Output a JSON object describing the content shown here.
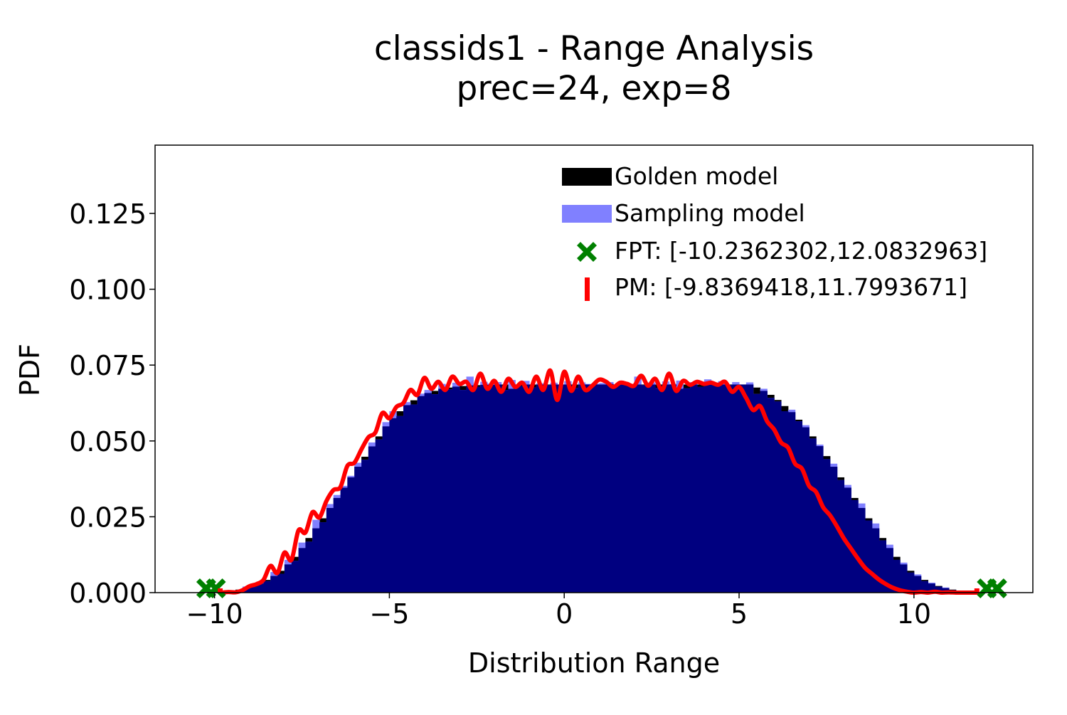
{
  "chart_data": {
    "type": "bar",
    "title": "classids1 - Range Analysis",
    "subtitle": "prec=24, exp=8",
    "xlabel": "Distribution Range",
    "ylabel": "PDF",
    "xlim": [
      -11.7,
      13.4
    ],
    "ylim": [
      0,
      0.1475
    ],
    "xticks": [
      -10,
      -5,
      0,
      5,
      10
    ],
    "xtick_labels": [
      "−10",
      "−5",
      "0",
      "5",
      "10"
    ],
    "yticks": [
      0,
      0.025,
      0.05,
      0.075,
      0.1,
      0.125
    ],
    "ytick_labels": [
      "0.000",
      "0.025",
      "0.050",
      "0.075",
      "0.100",
      "0.125"
    ],
    "grid": false,
    "legend_position": "top-right",
    "legend": [
      {
        "label": "Golden model",
        "marker": "bar",
        "color": "#000000"
      },
      {
        "label": "Sampling model",
        "marker": "bar",
        "color": "#8080ff"
      },
      {
        "label": "FPT: [-10.2362302,12.0832963]",
        "marker": "x",
        "color": "#008000"
      },
      {
        "label": "PM: [-9.8369418,11.7993671]",
        "marker": "vline",
        "color": "#ff0000"
      }
    ],
    "colors": {
      "golden": "#000000",
      "sampling": "#8080ff",
      "overlap": "#000080",
      "fpt": "#008000",
      "pm": "#ff0000"
    },
    "bin_width": 0.2,
    "series": [
      {
        "name": "Golden model",
        "bins_x_start": [
          -10.0,
          -9.8,
          -9.6,
          -9.4,
          -9.2,
          -9.0,
          -8.8,
          -8.6,
          -8.4,
          -8.2,
          -8.0,
          -7.8,
          -7.6,
          -7.4,
          -7.2,
          -7.0,
          -6.8,
          -6.6,
          -6.4,
          -6.2,
          -6.0,
          -5.8,
          -5.6,
          -5.4,
          -5.2,
          -5.0,
          -4.8,
          -4.6,
          -4.4,
          -4.2,
          -4.0,
          -3.8,
          -3.6,
          -3.4,
          -3.2,
          -3.0,
          -2.8,
          -2.6,
          -2.4,
          -2.2,
          -2.0,
          -1.8,
          -1.6,
          -1.4,
          -1.2,
          -1.0,
          -0.8,
          -0.6,
          -0.4,
          -0.2,
          0.0,
          0.2,
          0.4,
          0.6,
          0.8,
          1.0,
          1.2,
          1.4,
          1.6,
          1.8,
          2.0,
          2.2,
          2.4,
          2.6,
          2.8,
          3.0,
          3.2,
          3.4,
          3.6,
          3.8,
          4.0,
          4.2,
          4.4,
          4.6,
          4.8,
          5.0,
          5.2,
          5.4,
          5.6,
          5.8,
          6.0,
          6.2,
          6.4,
          6.6,
          6.8,
          7.0,
          7.2,
          7.4,
          7.6,
          7.8,
          8.0,
          8.2,
          8.4,
          8.6,
          8.8,
          9.0,
          9.2,
          9.4,
          9.6,
          9.8,
          10.0,
          10.2,
          10.4,
          10.6,
          10.8,
          11.0,
          11.2,
          11.4,
          11.6
        ],
        "values": [
          0.0002,
          0.0003,
          0.0006,
          0.001,
          0.0015,
          0.0022,
          0.003,
          0.0042,
          0.0055,
          0.0072,
          0.0093,
          0.0118,
          0.0147,
          0.018,
          0.0212,
          0.0245,
          0.0279,
          0.0312,
          0.0346,
          0.038,
          0.0415,
          0.0448,
          0.0482,
          0.0515,
          0.0548,
          0.0575,
          0.0598,
          0.0618,
          0.0634,
          0.0648,
          0.0658,
          0.0665,
          0.0672,
          0.0676,
          0.0679,
          0.0681,
          0.0683,
          0.0684,
          0.0685,
          0.0685,
          0.0686,
          0.0686,
          0.0672,
          0.0686,
          0.0686,
          0.0686,
          0.0686,
          0.0686,
          0.0686,
          0.0686,
          0.0686,
          0.0686,
          0.0686,
          0.0686,
          0.0686,
          0.0686,
          0.0688,
          0.0686,
          0.0686,
          0.0686,
          0.0686,
          0.0686,
          0.0686,
          0.0686,
          0.0686,
          0.0686,
          0.0672,
          0.0686,
          0.0686,
          0.0686,
          0.0686,
          0.0686,
          0.0686,
          0.0686,
          0.0686,
          0.0686,
          0.0686,
          0.0676,
          0.0665,
          0.0652,
          0.0635,
          0.0615,
          0.0595,
          0.057,
          0.0545,
          0.0515,
          0.0483,
          0.045,
          0.0415,
          0.038,
          0.0346,
          0.0312,
          0.0279,
          0.0245,
          0.0212,
          0.018,
          0.0147,
          0.0118,
          0.0093,
          0.0072,
          0.0055,
          0.0042,
          0.003,
          0.0022,
          0.0015,
          0.001,
          0.0006,
          0.0003,
          0.0002
        ]
      },
      {
        "name": "Sampling model",
        "bins_x_start": [
          -10.0,
          -9.8,
          -9.6,
          -9.4,
          -9.2,
          -9.0,
          -8.8,
          -8.6,
          -8.4,
          -8.2,
          -8.0,
          -7.8,
          -7.6,
          -7.4,
          -7.2,
          -7.0,
          -6.8,
          -6.6,
          -6.4,
          -6.2,
          -6.0,
          -5.8,
          -5.6,
          -5.4,
          -5.2,
          -5.0,
          -4.8,
          -4.6,
          -4.4,
          -4.2,
          -4.0,
          -3.8,
          -3.6,
          -3.4,
          -3.2,
          -3.0,
          -2.8,
          -2.6,
          -2.4,
          -2.2,
          -2.0,
          -1.8,
          -1.6,
          -1.4,
          -1.2,
          -1.0,
          -0.8,
          -0.6,
          -0.4,
          -0.2,
          0.0,
          0.2,
          0.4,
          0.6,
          0.8,
          1.0,
          1.2,
          1.4,
          1.6,
          1.8,
          2.0,
          2.2,
          2.4,
          2.6,
          2.8,
          3.0,
          3.2,
          3.4,
          3.6,
          3.8,
          4.0,
          4.2,
          4.4,
          4.6,
          4.8,
          5.0,
          5.2,
          5.4,
          5.6,
          5.8,
          6.0,
          6.2,
          6.4,
          6.6,
          6.8,
          7.0,
          7.2,
          7.4,
          7.6,
          7.8,
          8.0,
          8.2,
          8.4,
          8.6,
          8.8,
          9.0,
          9.2,
          9.4,
          9.6,
          9.8,
          10.0,
          10.2,
          10.4,
          10.6,
          10.8,
          11.0,
          11.2,
          11.4,
          11.6
        ],
        "values": [
          0.0003,
          0.0002,
          0.0008,
          0.0007,
          0.002,
          0.0018,
          0.0035,
          0.0038,
          0.0068,
          0.0062,
          0.0108,
          0.0105,
          0.0165,
          0.0168,
          0.024,
          0.0232,
          0.0292,
          0.0322,
          0.0352,
          0.0385,
          0.0428,
          0.0438,
          0.0495,
          0.0505,
          0.0562,
          0.0598,
          0.0582,
          0.0628,
          0.062,
          0.0656,
          0.0668,
          0.0654,
          0.0688,
          0.067,
          0.0692,
          0.0668,
          0.0712,
          0.0678,
          0.0695,
          0.0689,
          0.0694,
          0.0668,
          0.0701,
          0.0681,
          0.0698,
          0.0676,
          0.069,
          0.0684,
          0.0692,
          0.0686,
          0.0697,
          0.0675,
          0.0693,
          0.0688,
          0.0689,
          0.0691,
          0.0694,
          0.0683,
          0.0692,
          0.0685,
          0.0712,
          0.0684,
          0.0693,
          0.0675,
          0.0696,
          0.0688,
          0.0699,
          0.0674,
          0.0694,
          0.0678,
          0.0703,
          0.0686,
          0.0697,
          0.0684,
          0.0694,
          0.0686,
          0.0693,
          0.0655,
          0.0672,
          0.0642,
          0.063,
          0.0598,
          0.0603,
          0.0565,
          0.0552,
          0.0508,
          0.0488,
          0.044,
          0.0425,
          0.0371,
          0.0355,
          0.0305,
          0.0294,
          0.0238,
          0.0228,
          0.0172,
          0.0158,
          0.0108,
          0.0099,
          0.0066,
          0.006,
          0.0038,
          0.0033,
          0.002,
          0.0017,
          0.0008,
          0.0006,
          0.0003,
          0.0002
        ]
      },
      {
        "name": "Density estimate",
        "x": [
          -9.8,
          -9.6,
          -9.4,
          -9.2,
          -9.0,
          -8.8,
          -8.6,
          -8.4,
          -8.2,
          -8.0,
          -7.8,
          -7.6,
          -7.4,
          -7.2,
          -7.0,
          -6.8,
          -6.6,
          -6.4,
          -6.2,
          -6.0,
          -5.8,
          -5.6,
          -5.4,
          -5.2,
          -5.0,
          -4.8,
          -4.6,
          -4.4,
          -4.2,
          -4.0,
          -3.8,
          -3.6,
          -3.4,
          -3.2,
          -3.0,
          -2.8,
          -2.6,
          -2.4,
          -2.2,
          -2.0,
          -1.8,
          -1.6,
          -1.4,
          -1.2,
          -1.0,
          -0.8,
          -0.6,
          -0.4,
          -0.2,
          0.0,
          0.2,
          0.4,
          0.6,
          0.8,
          1.0,
          1.2,
          1.4,
          1.6,
          1.8,
          2.0,
          2.2,
          2.4,
          2.6,
          2.8,
          3.0,
          3.2,
          3.4,
          3.6,
          3.8,
          4.0,
          4.2,
          4.4,
          4.6,
          4.8,
          5.0,
          5.2,
          5.4,
          5.6,
          5.8,
          6.0,
          6.2,
          6.4,
          6.6,
          6.8,
          7.0,
          7.2,
          7.4,
          7.6,
          7.8,
          8.0,
          8.2,
          8.4,
          8.6,
          8.8,
          9.0,
          9.2,
          9.4,
          9.6,
          9.8,
          10.0,
          10.2,
          10.4,
          10.6,
          10.8,
          11.0,
          11.2,
          11.4,
          11.6,
          11.8
        ],
        "values": [
          0.0,
          0.0002,
          0.0001,
          0.0008,
          0.0021,
          0.0028,
          0.0042,
          0.0088,
          0.0065,
          0.0132,
          0.0108,
          0.0205,
          0.0198,
          0.0265,
          0.0248,
          0.0302,
          0.0338,
          0.0348,
          0.0418,
          0.0428,
          0.0472,
          0.0512,
          0.0528,
          0.0592,
          0.0575,
          0.0612,
          0.0625,
          0.0668,
          0.0652,
          0.0708,
          0.0672,
          0.0695,
          0.0668,
          0.0712,
          0.0688,
          0.0695,
          0.0668,
          0.0722,
          0.0672,
          0.0698,
          0.0662,
          0.0705,
          0.0678,
          0.0692,
          0.0662,
          0.0712,
          0.0668,
          0.0732,
          0.0635,
          0.0728,
          0.0665,
          0.0712,
          0.0668,
          0.0682,
          0.0702,
          0.0695,
          0.0678,
          0.0692,
          0.0688,
          0.0682,
          0.0715,
          0.0682,
          0.0705,
          0.0668,
          0.0722,
          0.0665,
          0.0698,
          0.0685,
          0.0695,
          0.0688,
          0.0692,
          0.0685,
          0.0695,
          0.0662,
          0.0678,
          0.0642,
          0.0602,
          0.0615,
          0.0565,
          0.0538,
          0.0495,
          0.0478,
          0.0425,
          0.0408,
          0.0352,
          0.0332,
          0.0282,
          0.0255,
          0.0218,
          0.0178,
          0.0145,
          0.0112,
          0.0082,
          0.0062,
          0.0043,
          0.0028,
          0.0016,
          0.0008,
          0.0003,
          0.0,
          0.0002,
          0.0,
          0.0003,
          0.0,
          0.0001,
          0.0,
          0.0,
          0.0,
          0.0
        ]
      }
    ],
    "fpt_range": [
      -10.2362302,
      12.0832963
    ],
    "fpt_marker_x": [
      -10.2362302,
      -9.96,
      12.0832963,
      12.38
    ],
    "pm_range": [
      -9.8369418,
      11.7993671
    ],
    "pm_marker_value": 0.0014
  }
}
